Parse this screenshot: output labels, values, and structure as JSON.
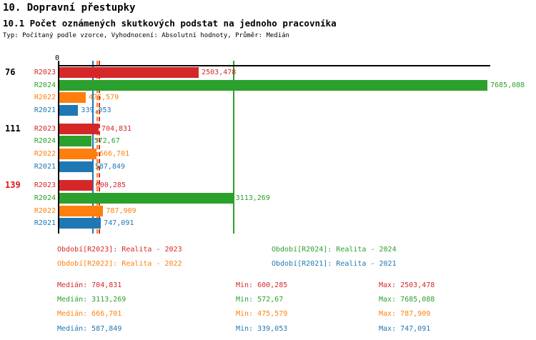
{
  "header": {
    "title": "10. Dopravní přestupky",
    "subtitle": "10.1 Počet oznámených skutkových podstat na jednoho pracovníka",
    "meta": "Typ: Počítaný podle vzorce, Vyhodnocení: Absolutní hodnoty, Průměr: Medián"
  },
  "colors": {
    "R2023": "#d62728",
    "R2024": "#2ca02c",
    "R2022": "#ff7f0e",
    "R2021": "#1f77b4",
    "group_label_default": "#000000",
    "group_label_highlight": "#e01818",
    "axis": "#000000"
  },
  "chart_data": {
    "type": "bar",
    "orientation": "horizontal",
    "title": "10.1 Počet oznámených skutkových podstat na jednoho pracovníka",
    "x_axis": {
      "zero_label": "0",
      "min": 0,
      "max": 7685.088
    },
    "series_order": [
      "R2023",
      "R2024",
      "R2022",
      "R2021"
    ],
    "groups": [
      {
        "label": "76",
        "highlight": false,
        "bars": [
          {
            "series": "R2023",
            "value": 2503.478,
            "display": "2503,478"
          },
          {
            "series": "R2024",
            "value": 7685.088,
            "display": "7685,088"
          },
          {
            "series": "R2022",
            "value": 475.579,
            "display": "475,579"
          },
          {
            "series": "R2021",
            "value": 339.053,
            "display": "339,053"
          }
        ]
      },
      {
        "label": "111",
        "highlight": false,
        "bars": [
          {
            "series": "R2023",
            "value": 704.831,
            "display": "704,831"
          },
          {
            "series": "R2024",
            "value": 572.67,
            "display": "572,67"
          },
          {
            "series": "R2022",
            "value": 666.701,
            "display": "666,701"
          },
          {
            "series": "R2021",
            "value": 587.849,
            "display": "587,849"
          }
        ]
      },
      {
        "label": "139",
        "highlight": true,
        "bars": [
          {
            "series": "R2023",
            "value": 600.285,
            "display": "600,285"
          },
          {
            "series": "R2024",
            "value": 3113.269,
            "display": "3113,269"
          },
          {
            "series": "R2022",
            "value": 787.909,
            "display": "787,909"
          },
          {
            "series": "R2021",
            "value": 747.091,
            "display": "747,091"
          }
        ]
      }
    ],
    "median_lines": [
      {
        "series": "R2023",
        "value": 704.831,
        "style": "dashed"
      },
      {
        "series": "R2024",
        "value": 3113.269,
        "style": "solid"
      },
      {
        "series": "R2022",
        "value": 666.701,
        "style": "dashed"
      },
      {
        "series": "R2021",
        "value": 587.849,
        "style": "solid"
      }
    ]
  },
  "legend": [
    {
      "series": "R2023",
      "label": "Období[R2023]: Realita - 2023",
      "col": 0,
      "row": 0
    },
    {
      "series": "R2024",
      "label": "Období[R2024]: Realita - 2024",
      "col": 1,
      "row": 0
    },
    {
      "series": "R2022",
      "label": "Období[R2022]: Realita - 2022",
      "col": 0,
      "row": 1
    },
    {
      "series": "R2021",
      "label": "Období[R2021]: Realita - 2021",
      "col": 1,
      "row": 1
    }
  ],
  "stats": {
    "labels": {
      "median": "Medián:",
      "min": "Min:",
      "max": "Max:"
    },
    "rows": [
      {
        "series": "R2023",
        "median": "704,831",
        "min": "600,285",
        "max": "2503,478"
      },
      {
        "series": "R2024",
        "median": "3113,269",
        "min": "572,67",
        "max": "7685,088"
      },
      {
        "series": "R2022",
        "median": "666,701",
        "min": "475,579",
        "max": "787,909"
      },
      {
        "series": "R2021",
        "median": "587,849",
        "min": "339,053",
        "max": "747,091"
      }
    ]
  }
}
